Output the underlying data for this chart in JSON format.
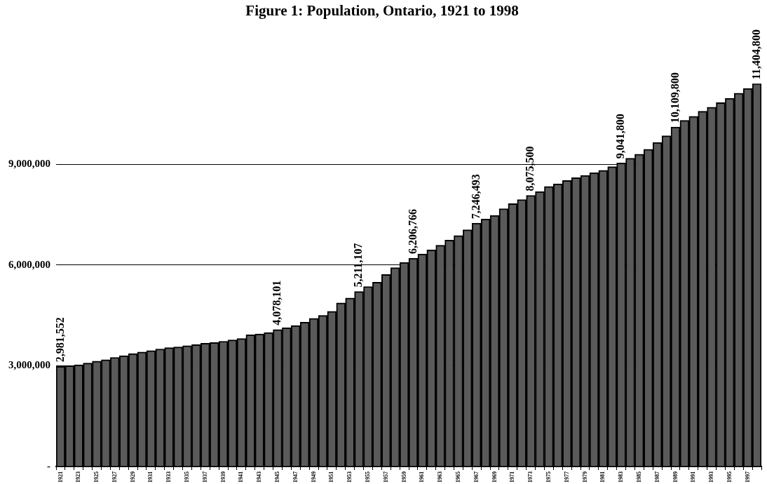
{
  "chart_data": {
    "type": "bar",
    "title": "Figure 1: Population, Ontario, 1921 to 1998",
    "categories": [
      "1921",
      null,
      "1923",
      null,
      "1925",
      null,
      "1927",
      null,
      "1929",
      null,
      "1931",
      null,
      "1933",
      null,
      "1935",
      null,
      "1937",
      null,
      "1939",
      null,
      "1941",
      null,
      "1943",
      null,
      "1945",
      null,
      "1947",
      null,
      "1949",
      null,
      "1951",
      null,
      "1953",
      null,
      "1955",
      null,
      "1957",
      null,
      "1959",
      null,
      "1961",
      null,
      "1963",
      null,
      "1965",
      null,
      "1967",
      null,
      "1969",
      null,
      "1971",
      null,
      "1973",
      null,
      "1975",
      null,
      "1977",
      null,
      "1979",
      null,
      "1981",
      null,
      "1983",
      null,
      "1985",
      null,
      "1987",
      null,
      "1989",
      null,
      "1991",
      null,
      "1993",
      null,
      "1995",
      null,
      "1997",
      null
    ],
    "values": [
      2981552,
      3000000,
      3030000,
      3080000,
      3140000,
      3180000,
      3250000,
      3300000,
      3360000,
      3410000,
      3450000,
      3500000,
      3540000,
      3560000,
      3600000,
      3630000,
      3670000,
      3690000,
      3730000,
      3770000,
      3810000,
      3920000,
      3950000,
      3990000,
      4078101,
      4130000,
      4200000,
      4300000,
      4410000,
      4500000,
      4620000,
      4870000,
      5020000,
      5211107,
      5360000,
      5490000,
      5720000,
      5920000,
      6080000,
      6206766,
      6330000,
      6450000,
      6590000,
      6740000,
      6880000,
      7050000,
      7246493,
      7370000,
      7480000,
      7680000,
      7830000,
      7950000,
      8075500,
      8190000,
      8340000,
      8420000,
      8520000,
      8600000,
      8670000,
      8750000,
      8820000,
      8930000,
      9041800,
      9180000,
      9300000,
      9450000,
      9650000,
      9850000,
      10109800,
      10310000,
      10430000,
      10580000,
      10700000,
      10840000,
      10970000,
      11120000,
      11260000,
      11404800
    ],
    "value_labels": [
      "2,981,552",
      null,
      null,
      null,
      null,
      null,
      null,
      null,
      null,
      null,
      null,
      null,
      null,
      null,
      null,
      null,
      null,
      null,
      null,
      null,
      null,
      null,
      null,
      null,
      "4,078,101",
      null,
      null,
      null,
      null,
      null,
      null,
      null,
      null,
      "5,211,107",
      null,
      null,
      null,
      null,
      null,
      "6,206,766",
      null,
      null,
      null,
      null,
      null,
      null,
      "7,246,493",
      null,
      null,
      null,
      null,
      null,
      "8,075,500",
      null,
      null,
      null,
      null,
      null,
      null,
      null,
      null,
      null,
      "9,041,800",
      null,
      null,
      null,
      null,
      null,
      "10,109,800",
      null,
      null,
      null,
      null,
      null,
      null,
      null,
      null,
      "11,404,800"
    ],
    "color": "#5a5a5a",
    "ylim": [
      0,
      11404800
    ],
    "yticks": [
      {
        "value": 0,
        "label": "-"
      },
      {
        "value": 3000000,
        "label": "3,000,000"
      },
      {
        "value": 6000000,
        "label": "6,000,000"
      },
      {
        "value": 9000000,
        "label": "9,000,000"
      }
    ],
    "grid": "y"
  }
}
